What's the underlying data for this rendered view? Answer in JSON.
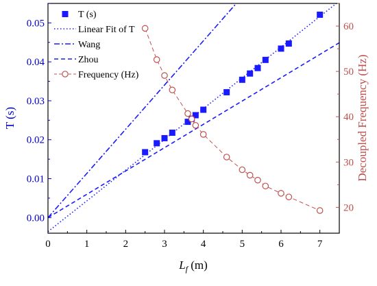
{
  "chart_data": {
    "type": "scatter",
    "xlabel": {
      "var": "L",
      "sub": "f",
      "unit": " (m)"
    },
    "ylabel_left": "T (s)",
    "ylabel_right": "Decoupled Frequency (Hz)",
    "xlim": [
      0,
      7.5
    ],
    "ylim_left": [
      -0.004,
      0.055
    ],
    "ylim_right": [
      14.3,
      65
    ],
    "x_ticks": [
      0,
      1,
      2,
      3,
      4,
      5,
      6,
      7
    ],
    "x_tick_labels": [
      "0",
      "1",
      "2",
      "3",
      "4",
      "5",
      "6",
      "7"
    ],
    "y_left_ticks": [
      0.0,
      0.01,
      0.02,
      0.03,
      0.04,
      0.05
    ],
    "y_left_tick_labels": [
      "0.00",
      "0.01",
      "0.02",
      "0.03",
      "0.04",
      "0.05"
    ],
    "y_right_ticks": [
      20,
      30,
      40,
      50,
      60
    ],
    "y_right_tick_labels": [
      "20",
      "30",
      "40",
      "50",
      "60"
    ],
    "colors": {
      "left_axis": "#0000cc",
      "right_axis": "#c0504d",
      "series": "#1a1aff",
      "frequency": "#c0504d"
    },
    "legend": {
      "placement": "top-left"
    },
    "series": [
      {
        "name": "T (s)",
        "kind": "markers",
        "marker": "square",
        "axis": "left",
        "x": [
          2.5,
          2.8,
          3.0,
          3.2,
          3.6,
          3.7,
          3.8,
          4.0,
          4.6,
          5.0,
          5.2,
          5.4,
          5.6,
          6.0,
          6.2,
          7.0
        ],
        "y": [
          0.0168,
          0.0191,
          0.0204,
          0.0218,
          0.0246,
          0.0254,
          0.0263,
          0.0277,
          0.0322,
          0.0354,
          0.037,
          0.0384,
          0.0405,
          0.0434,
          0.0447,
          0.0521
        ]
      },
      {
        "name": "Linear Fit of T",
        "kind": "line",
        "dash": "dot",
        "axis": "left",
        "x": [
          0,
          7.5
        ],
        "y": [
          -0.0036,
          0.0556
        ]
      },
      {
        "name": "Wang",
        "kind": "line",
        "dash": "dashdot",
        "axis": "left",
        "x": [
          0,
          7.5
        ],
        "y": [
          0.0,
          0.0851
        ]
      },
      {
        "name": "Zhou",
        "kind": "line",
        "dash": "dash",
        "axis": "left",
        "x": [
          0,
          7.5
        ],
        "y": [
          0.0,
          0.0449
        ]
      },
      {
        "name": "Frequency (Hz)",
        "kind": "line-markers",
        "marker": "circle",
        "dash": "dash",
        "axis": "right",
        "x": [
          2.5,
          2.8,
          3.0,
          3.2,
          3.6,
          3.7,
          3.8,
          4.0,
          4.6,
          5.0,
          5.2,
          5.4,
          5.6,
          6.0,
          6.2,
          7.0
        ],
        "y": [
          59.5,
          52.6,
          49.1,
          45.9,
          40.7,
          39.5,
          38.1,
          36.1,
          31.1,
          28.3,
          27.1,
          26.0,
          24.7,
          23.1,
          22.3,
          19.3
        ]
      }
    ]
  }
}
